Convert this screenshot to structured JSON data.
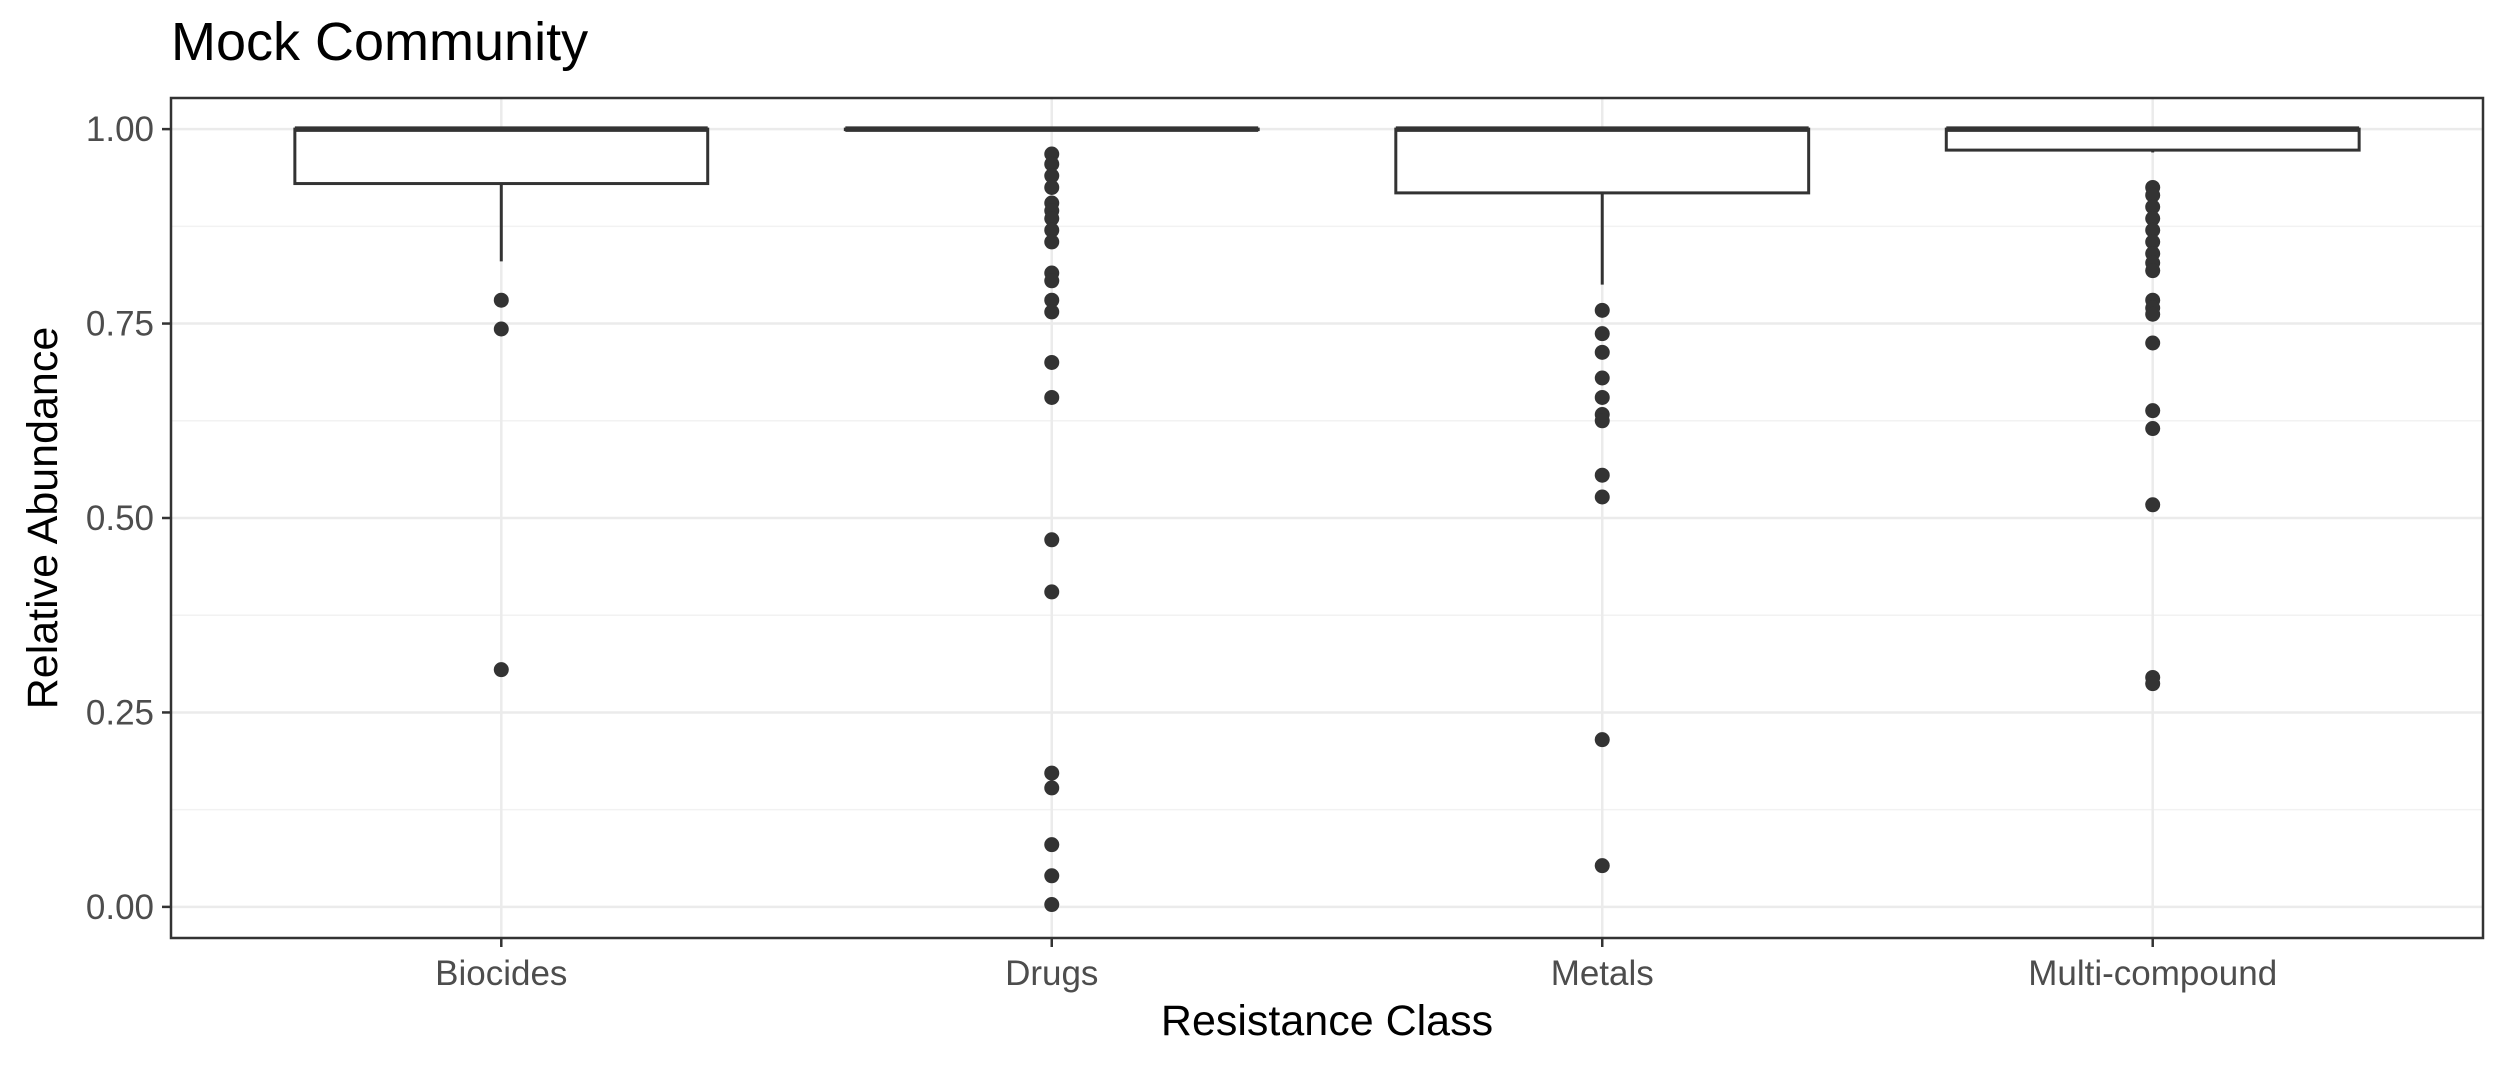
{
  "chart_data": {
    "type": "box",
    "title": "Mock Community",
    "xlabel": "Resistance Class",
    "ylabel": "Relative Abundance",
    "ylim": [
      -0.04,
      1.04
    ],
    "yticks": [
      0.0,
      0.25,
      0.5,
      0.75,
      1.0
    ],
    "ytick_labels": [
      "0.00",
      "0.25",
      "0.50",
      "0.75",
      "1.00"
    ],
    "grid": true,
    "categories": [
      "Biocides",
      "Drugs",
      "Metals",
      "Multi-compound"
    ],
    "boxes": [
      {
        "category": "Biocides",
        "q1": 0.93,
        "median": 1.0,
        "q3": 1.0,
        "whisker_low": 0.83,
        "whisker_high": 1.0,
        "outliers": [
          0.78,
          0.743,
          0.305
        ]
      },
      {
        "category": "Drugs",
        "q1": 1.0,
        "median": 1.0,
        "q3": 1.0,
        "whisker_low": 1.0,
        "whisker_high": 1.0,
        "outliers": [
          0.968,
          0.955,
          0.94,
          0.925,
          0.905,
          0.895,
          0.885,
          0.87,
          0.855,
          0.815,
          0.805,
          0.78,
          0.765,
          0.7,
          0.655,
          0.472,
          0.405,
          0.172,
          0.153,
          0.08,
          0.04,
          0.003
        ]
      },
      {
        "category": "Metals",
        "q1": 0.918,
        "median": 1.0,
        "q3": 1.0,
        "whisker_low": 0.8,
        "whisker_high": 1.0,
        "outliers": [
          0.767,
          0.737,
          0.713,
          0.68,
          0.655,
          0.633,
          0.625,
          0.555,
          0.527,
          0.215,
          0.053
        ]
      },
      {
        "category": "Multi-compound",
        "q1": 0.973,
        "median": 1.0,
        "q3": 1.0,
        "whisker_low": 0.97,
        "whisker_high": 1.0,
        "outliers": [
          0.925,
          0.915,
          0.9,
          0.885,
          0.87,
          0.855,
          0.84,
          0.828,
          0.818,
          0.78,
          0.77,
          0.762,
          0.725,
          0.638,
          0.615,
          0.517,
          0.295,
          0.287
        ]
      }
    ]
  }
}
